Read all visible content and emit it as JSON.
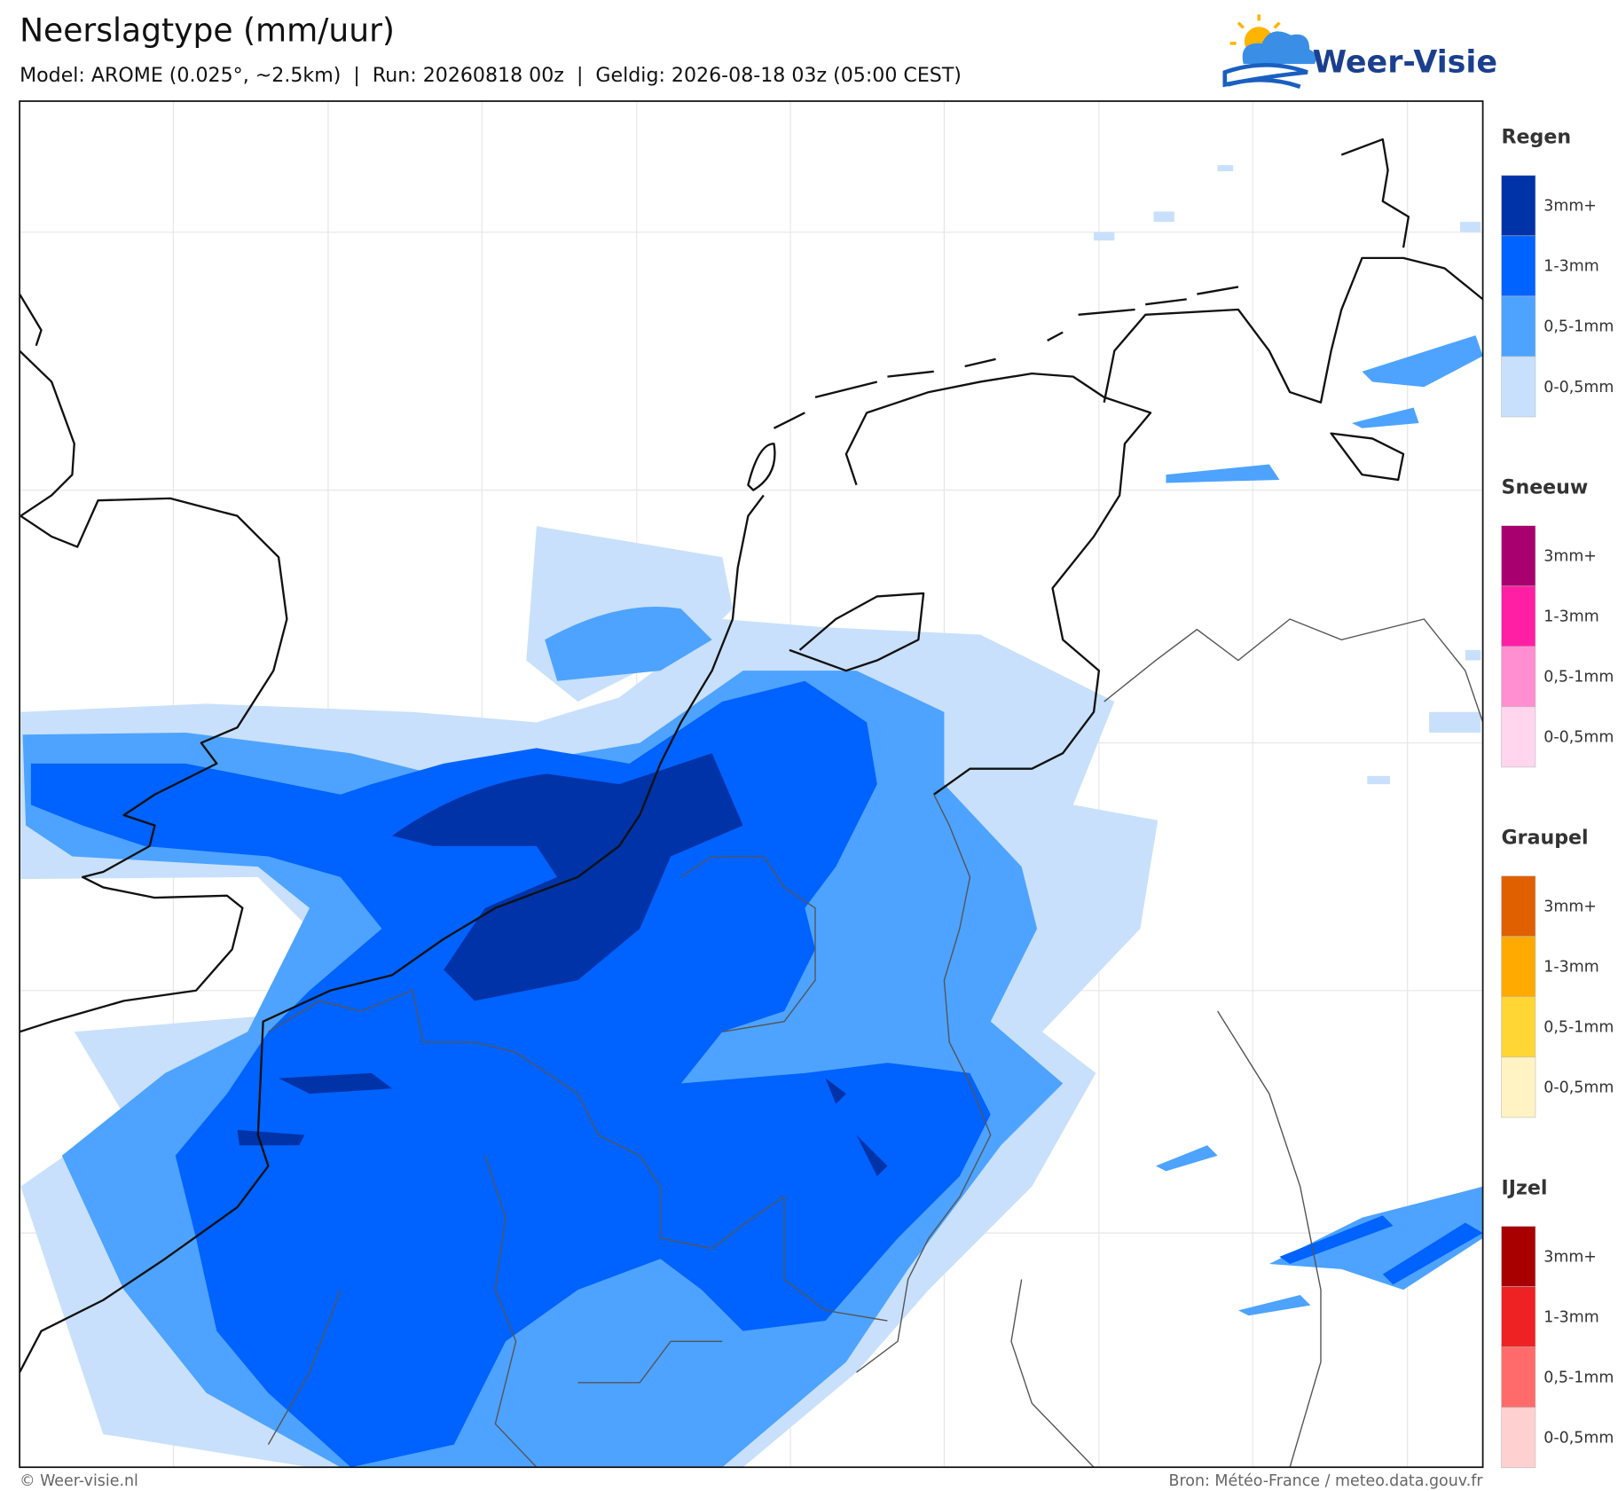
{
  "header": {
    "title": "Neerslagtype (mm/uur)",
    "subtitle": "Model: AROME (0.025°, ~2.5km)  |  Run: 20260818 00z  |  Geldig: 2026-08-18 03z (05:00 CEST)",
    "logo": "Weer-Visie"
  },
  "legend": [
    {
      "title": "Regen",
      "items": [
        {
          "label": "3mm+",
          "color": "#0033a8"
        },
        {
          "label": "1-3mm",
          "color": "#0062ff"
        },
        {
          "label": "0,5-1mm",
          "color": "#4da3ff"
        },
        {
          "label": "0-0,5mm",
          "color": "#c8e0fb"
        }
      ]
    },
    {
      "title": "Sneeuw",
      "items": [
        {
          "label": "3mm+",
          "color": "#a8006e"
        },
        {
          "label": "1-3mm",
          "color": "#ff1fa4"
        },
        {
          "label": "0,5-1mm",
          "color": "#ff8fd0"
        },
        {
          "label": "0-0,5mm",
          "color": "#ffd6ee"
        }
      ]
    },
    {
      "title": "Graupel",
      "items": [
        {
          "label": "3mm+",
          "color": "#e06000"
        },
        {
          "label": "1-3mm",
          "color": "#ffaa00"
        },
        {
          "label": "0,5-1mm",
          "color": "#ffd633"
        },
        {
          "label": "0-0,5mm",
          "color": "#fff3c4"
        }
      ]
    },
    {
      "title": "IJzel",
      "items": [
        {
          "label": "3mm+",
          "color": "#a80000"
        },
        {
          "label": "1-3mm",
          "color": "#ee2222"
        },
        {
          "label": "0,5-1mm",
          "color": "#ff6b6b"
        },
        {
          "label": "0-0,5mm",
          "color": "#ffd0d0"
        }
      ]
    }
  ],
  "footer": {
    "left": "© Weer-visie.nl",
    "right": "Bron: Météo-France / meteo.data.gouv.fr"
  }
}
